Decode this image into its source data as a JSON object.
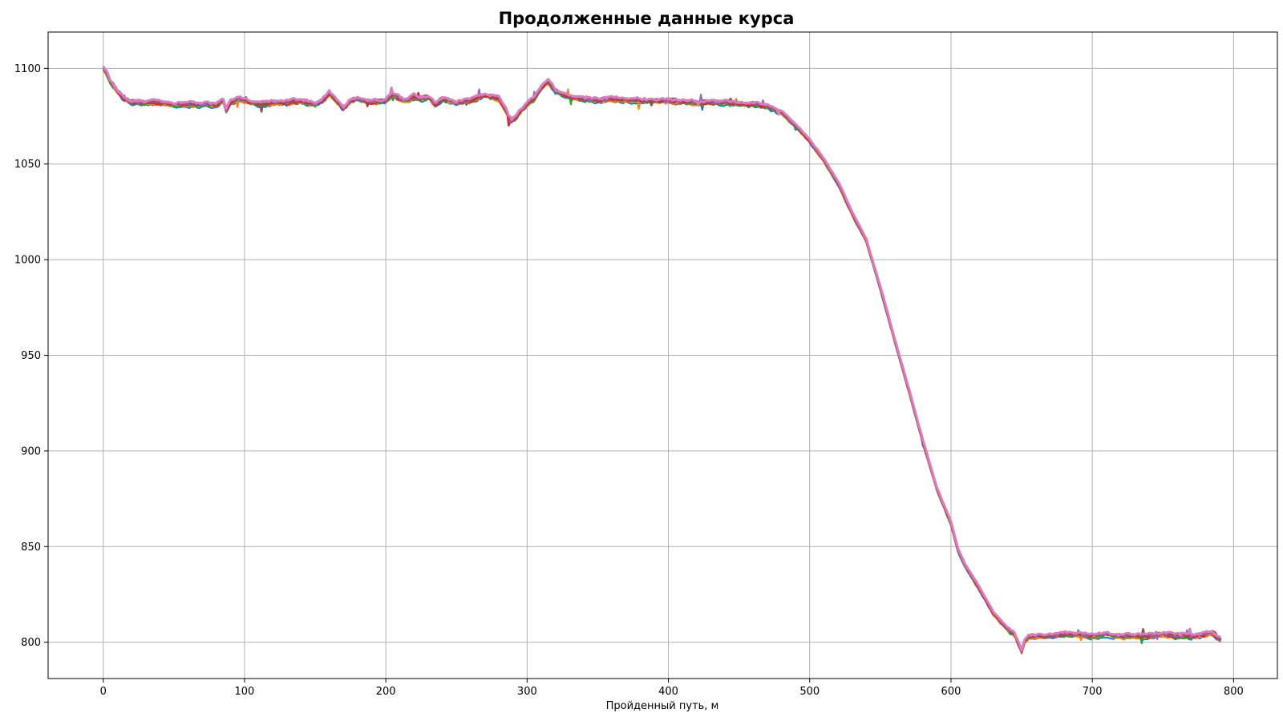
{
  "chart_data": {
    "type": "line",
    "title": "Продолженные данные курса",
    "xlabel": "Пройденный путь, м",
    "ylabel": "",
    "xlim": [
      -39,
      831
    ],
    "ylim": [
      781,
      1119
    ],
    "xticks": [
      0,
      100,
      200,
      300,
      400,
      500,
      600,
      700,
      800
    ],
    "yticks": [
      800,
      850,
      900,
      950,
      1000,
      1050,
      1100
    ],
    "grid": true,
    "legend": "none",
    "base_profile": {
      "x": [
        0,
        2,
        5,
        10,
        15,
        20,
        30,
        40,
        50,
        60,
        70,
        80,
        85,
        87,
        90,
        95,
        100,
        110,
        120,
        130,
        140,
        150,
        155,
        160,
        165,
        170,
        175,
        180,
        190,
        200,
        205,
        210,
        215,
        220,
        225,
        230,
        235,
        240,
        250,
        260,
        270,
        275,
        280,
        285,
        288,
        292,
        296,
        300,
        305,
        310,
        315,
        320,
        330,
        340,
        350,
        360,
        380,
        400,
        420,
        440,
        460,
        470,
        480,
        490,
        500,
        510,
        520,
        530,
        540,
        550,
        560,
        570,
        580,
        590,
        600,
        605,
        610,
        620,
        630,
        640,
        645,
        650,
        652,
        655,
        660,
        670,
        680,
        690,
        700,
        710,
        720,
        730,
        740,
        750,
        760,
        770,
        780,
        785,
        791
      ],
      "y": [
        1100,
        1098,
        1093,
        1088,
        1084,
        1082,
        1082,
        1082,
        1081,
        1081,
        1081,
        1081,
        1083,
        1078,
        1082,
        1084,
        1083,
        1081,
        1082,
        1082,
        1083,
        1081,
        1083,
        1087,
        1083,
        1079,
        1083,
        1084,
        1082,
        1083,
        1086,
        1084,
        1083,
        1085,
        1084,
        1085,
        1081,
        1084,
        1082,
        1083,
        1086,
        1085,
        1084,
        1078,
        1072,
        1074,
        1078,
        1081,
        1084,
        1090,
        1093,
        1088,
        1085,
        1084,
        1083,
        1084,
        1083,
        1083,
        1082,
        1082,
        1081,
        1080,
        1077,
        1070,
        1062,
        1052,
        1040,
        1024,
        1010,
        985,
        958,
        932,
        905,
        880,
        862,
        848,
        840,
        828,
        815,
        807,
        804,
        795,
        800,
        803,
        803,
        803,
        804,
        804,
        803,
        804,
        803,
        803,
        803,
        804,
        803,
        803,
        804,
        805,
        801
      ]
    },
    "series": [
      {
        "color": "#1f77b4",
        "width": 2.0
      },
      {
        "color": "#ff7f0e",
        "width": 2.0
      },
      {
        "color": "#2ca02c",
        "width": 2.0
      },
      {
        "color": "#d62728",
        "width": 2.5
      },
      {
        "color": "#9467bd",
        "width": 2.0
      },
      {
        "color": "#8c564b",
        "width": 2.8
      },
      {
        "color": "#e377c2",
        "width": 3.0
      }
    ],
    "grid_color": "#b0b0b0"
  }
}
